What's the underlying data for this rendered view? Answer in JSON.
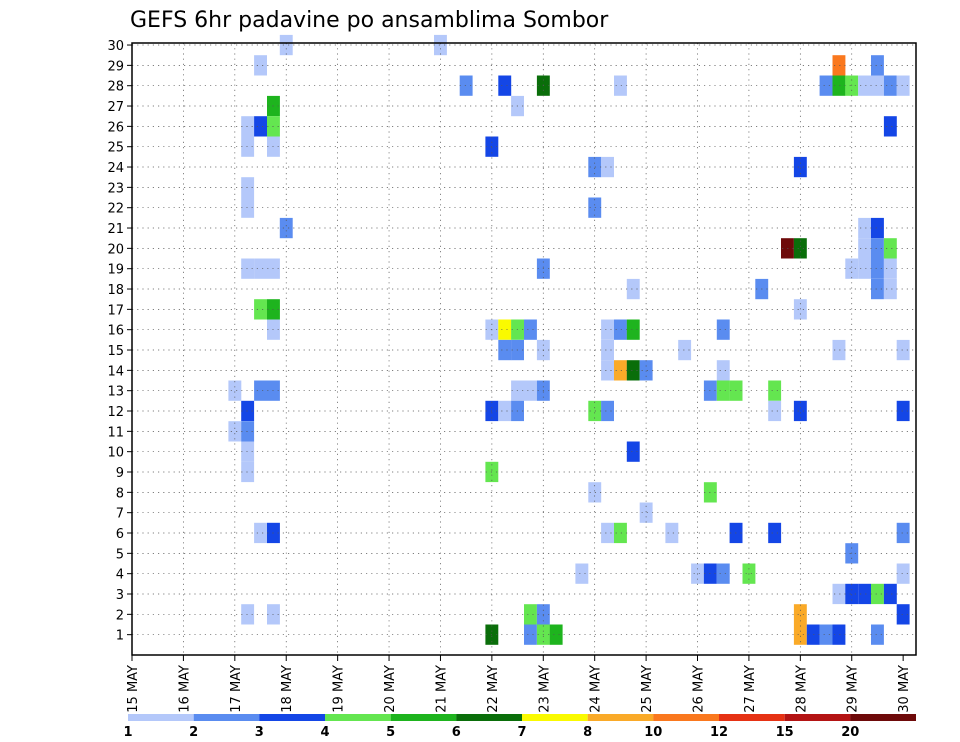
{
  "chart_data": {
    "type": "heatmap",
    "title": "GEFS 6hr padavine po ansamblima Sombor",
    "y_ticks": [
      1,
      2,
      3,
      4,
      5,
      6,
      7,
      8,
      9,
      10,
      11,
      12,
      13,
      14,
      15,
      16,
      17,
      18,
      19,
      20,
      21,
      22,
      23,
      24,
      25,
      26,
      27,
      28,
      29,
      30
    ],
    "x_range": [
      0,
      60
    ],
    "x_ticks": [
      {
        "at": 0,
        "label": "15 MAY"
      },
      {
        "at": 4,
        "label": "16 MAY"
      },
      {
        "at": 8,
        "label": "17 MAY"
      },
      {
        "at": 12,
        "label": "18 MAY"
      },
      {
        "at": 16,
        "label": "19 MAY"
      },
      {
        "at": 20,
        "label": "20 MAY"
      },
      {
        "at": 24,
        "label": "21 MAY"
      },
      {
        "at": 28,
        "label": "22 MAY"
      },
      {
        "at": 32,
        "label": "23 MAY"
      },
      {
        "at": 36,
        "label": "24 MAY"
      },
      {
        "at": 40,
        "label": "25 MAY"
      },
      {
        "at": 44,
        "label": "26 MAY"
      },
      {
        "at": 48,
        "label": "27 MAY"
      },
      {
        "at": 52,
        "label": "28 MAY"
      },
      {
        "at": 56,
        "label": "29 MAY"
      },
      {
        "at": 60,
        "label": "30 MAY"
      }
    ],
    "grid": true,
    "legend_placement": "bottom",
    "colorbar": {
      "labels": [
        "1",
        "2",
        "3",
        "4",
        "5",
        "6",
        "7",
        "8",
        "10",
        "12",
        "15",
        "20"
      ],
      "colors": [
        "#b4c8fa",
        "#5a8cf0",
        "#1446e6",
        "#64e650",
        "#1eb41e",
        "#0a6e0a",
        "#fafa00",
        "#faaa28",
        "#fa781e",
        "#e63214",
        "#b41414",
        "#6e0a0a"
      ]
    },
    "cells": [
      {
        "x": 12,
        "y": 30,
        "c": 0
      },
      {
        "x": 24,
        "y": 30,
        "c": 0
      },
      {
        "x": 10,
        "y": 29,
        "c": 0
      },
      {
        "x": 55,
        "y": 29,
        "c": 8
      },
      {
        "x": 58,
        "y": 29,
        "c": 1
      },
      {
        "x": 26,
        "y": 28,
        "c": 1
      },
      {
        "x": 29,
        "y": 28,
        "c": 2
      },
      {
        "x": 32,
        "y": 28,
        "c": 5
      },
      {
        "x": 38,
        "y": 28,
        "c": 0
      },
      {
        "x": 54,
        "y": 28,
        "c": 1
      },
      {
        "x": 55,
        "y": 28,
        "c": 4
      },
      {
        "x": 56,
        "y": 28,
        "c": 3
      },
      {
        "x": 57,
        "y": 28,
        "c": 0
      },
      {
        "x": 58,
        "y": 28,
        "c": 0
      },
      {
        "x": 59,
        "y": 28,
        "c": 1
      },
      {
        "x": 60,
        "y": 28,
        "c": 0
      },
      {
        "x": 11,
        "y": 27,
        "c": 4
      },
      {
        "x": 30,
        "y": 27,
        "c": 0
      },
      {
        "x": 9,
        "y": 26,
        "c": 0
      },
      {
        "x": 10,
        "y": 26,
        "c": 2
      },
      {
        "x": 11,
        "y": 26,
        "c": 3
      },
      {
        "x": 59,
        "y": 26,
        "c": 2
      },
      {
        "x": 9,
        "y": 25,
        "c": 0
      },
      {
        "x": 11,
        "y": 25,
        "c": 0
      },
      {
        "x": 28,
        "y": 25,
        "c": 2
      },
      {
        "x": 36,
        "y": 24,
        "c": 1
      },
      {
        "x": 37,
        "y": 24,
        "c": 0
      },
      {
        "x": 52,
        "y": 24,
        "c": 2
      },
      {
        "x": 9,
        "y": 23,
        "c": 0
      },
      {
        "x": 9,
        "y": 22,
        "c": 0
      },
      {
        "x": 36,
        "y": 22,
        "c": 1
      },
      {
        "x": 12,
        "y": 21,
        "c": 1
      },
      {
        "x": 57,
        "y": 21,
        "c": 0
      },
      {
        "x": 58,
        "y": 21,
        "c": 2
      },
      {
        "x": 51,
        "y": 20,
        "c": 11
      },
      {
        "x": 52,
        "y": 20,
        "c": 5
      },
      {
        "x": 57,
        "y": 20,
        "c": 0
      },
      {
        "x": 58,
        "y": 20,
        "c": 1
      },
      {
        "x": 59,
        "y": 20,
        "c": 3
      },
      {
        "x": 32,
        "y": 19,
        "c": 1
      },
      {
        "x": 56,
        "y": 19,
        "c": 0
      },
      {
        "x": 57,
        "y": 19,
        "c": 0
      },
      {
        "x": 58,
        "y": 19,
        "c": 1
      },
      {
        "x": 59,
        "y": 19,
        "c": 0
      },
      {
        "x": 9,
        "y": 19,
        "c": 0
      },
      {
        "x": 10,
        "y": 19,
        "c": 0
      },
      {
        "x": 11,
        "y": 19,
        "c": 0
      },
      {
        "x": 39,
        "y": 18,
        "c": 0
      },
      {
        "x": 49,
        "y": 18,
        "c": 1
      },
      {
        "x": 58,
        "y": 18,
        "c": 1
      },
      {
        "x": 59,
        "y": 18,
        "c": 0
      },
      {
        "x": 10,
        "y": 17,
        "c": 3
      },
      {
        "x": 11,
        "y": 17,
        "c": 4
      },
      {
        "x": 52,
        "y": 17,
        "c": 0
      },
      {
        "x": 11,
        "y": 16,
        "c": 0
      },
      {
        "x": 28,
        "y": 16,
        "c": 0
      },
      {
        "x": 29,
        "y": 16,
        "c": 6
      },
      {
        "x": 30,
        "y": 16,
        "c": 3
      },
      {
        "x": 31,
        "y": 16,
        "c": 1
      },
      {
        "x": 37,
        "y": 16,
        "c": 0
      },
      {
        "x": 38,
        "y": 16,
        "c": 1
      },
      {
        "x": 39,
        "y": 16,
        "c": 4
      },
      {
        "x": 46,
        "y": 16,
        "c": 1
      },
      {
        "x": 29,
        "y": 15,
        "c": 1
      },
      {
        "x": 30,
        "y": 15,
        "c": 1
      },
      {
        "x": 32,
        "y": 15,
        "c": 0
      },
      {
        "x": 37,
        "y": 15,
        "c": 0
      },
      {
        "x": 43,
        "y": 15,
        "c": 0
      },
      {
        "x": 55,
        "y": 15,
        "c": 0
      },
      {
        "x": 60,
        "y": 15,
        "c": 0
      },
      {
        "x": 37,
        "y": 14,
        "c": 0
      },
      {
        "x": 38,
        "y": 14,
        "c": 7
      },
      {
        "x": 39,
        "y": 14,
        "c": 5
      },
      {
        "x": 40,
        "y": 14,
        "c": 1
      },
      {
        "x": 46,
        "y": 14,
        "c": 0
      },
      {
        "x": 8,
        "y": 13,
        "c": 0
      },
      {
        "x": 10,
        "y": 13,
        "c": 1
      },
      {
        "x": 11,
        "y": 13,
        "c": 1
      },
      {
        "x": 30,
        "y": 13,
        "c": 0
      },
      {
        "x": 31,
        "y": 13,
        "c": 0
      },
      {
        "x": 32,
        "y": 13,
        "c": 1
      },
      {
        "x": 45,
        "y": 13,
        "c": 1
      },
      {
        "x": 46,
        "y": 13,
        "c": 3
      },
      {
        "x": 47,
        "y": 13,
        "c": 3
      },
      {
        "x": 50,
        "y": 13,
        "c": 3
      },
      {
        "x": 9,
        "y": 12,
        "c": 2
      },
      {
        "x": 28,
        "y": 12,
        "c": 2
      },
      {
        "x": 29,
        "y": 12,
        "c": 0
      },
      {
        "x": 30,
        "y": 12,
        "c": 1
      },
      {
        "x": 36,
        "y": 12,
        "c": 3
      },
      {
        "x": 37,
        "y": 12,
        "c": 1
      },
      {
        "x": 50,
        "y": 12,
        "c": 0
      },
      {
        "x": 52,
        "y": 12,
        "c": 2
      },
      {
        "x": 60,
        "y": 12,
        "c": 2
      },
      {
        "x": 8,
        "y": 11,
        "c": 0
      },
      {
        "x": 9,
        "y": 11,
        "c": 1
      },
      {
        "x": 9,
        "y": 10,
        "c": 0
      },
      {
        "x": 39,
        "y": 10,
        "c": 2
      },
      {
        "x": 9,
        "y": 9,
        "c": 0
      },
      {
        "x": 28,
        "y": 9,
        "c": 3
      },
      {
        "x": 36,
        "y": 8,
        "c": 0
      },
      {
        "x": 45,
        "y": 8,
        "c": 3
      },
      {
        "x": 40,
        "y": 7,
        "c": 0
      },
      {
        "x": 10,
        "y": 6,
        "c": 0
      },
      {
        "x": 11,
        "y": 6,
        "c": 2
      },
      {
        "x": 37,
        "y": 6,
        "c": 0
      },
      {
        "x": 38,
        "y": 6,
        "c": 3
      },
      {
        "x": 42,
        "y": 6,
        "c": 0
      },
      {
        "x": 47,
        "y": 6,
        "c": 2
      },
      {
        "x": 50,
        "y": 6,
        "c": 2
      },
      {
        "x": 60,
        "y": 6,
        "c": 1
      },
      {
        "x": 56,
        "y": 5,
        "c": 1
      },
      {
        "x": 35,
        "y": 4,
        "c": 0
      },
      {
        "x": 44,
        "y": 4,
        "c": 0
      },
      {
        "x": 45,
        "y": 4,
        "c": 2
      },
      {
        "x": 46,
        "y": 4,
        "c": 1
      },
      {
        "x": 48,
        "y": 4,
        "c": 3
      },
      {
        "x": 60,
        "y": 4,
        "c": 0
      },
      {
        "x": 55,
        "y": 3,
        "c": 0
      },
      {
        "x": 56,
        "y": 3,
        "c": 2
      },
      {
        "x": 57,
        "y": 3,
        "c": 2
      },
      {
        "x": 58,
        "y": 3,
        "c": 3
      },
      {
        "x": 59,
        "y": 3,
        "c": 2
      },
      {
        "x": 9,
        "y": 2,
        "c": 0
      },
      {
        "x": 11,
        "y": 2,
        "c": 0
      },
      {
        "x": 31,
        "y": 2,
        "c": 3
      },
      {
        "x": 32,
        "y": 2,
        "c": 1
      },
      {
        "x": 52,
        "y": 2,
        "c": 7
      },
      {
        "x": 60,
        "y": 2,
        "c": 2
      },
      {
        "x": 28,
        "y": 1,
        "c": 5
      },
      {
        "x": 31,
        "y": 1,
        "c": 1
      },
      {
        "x": 32,
        "y": 1,
        "c": 3
      },
      {
        "x": 33,
        "y": 1,
        "c": 4
      },
      {
        "x": 52,
        "y": 1,
        "c": 7
      },
      {
        "x": 53,
        "y": 1,
        "c": 2
      },
      {
        "x": 54,
        "y": 1,
        "c": 1
      },
      {
        "x": 55,
        "y": 1,
        "c": 2
      },
      {
        "x": 58,
        "y": 1,
        "c": 1
      }
    ]
  }
}
